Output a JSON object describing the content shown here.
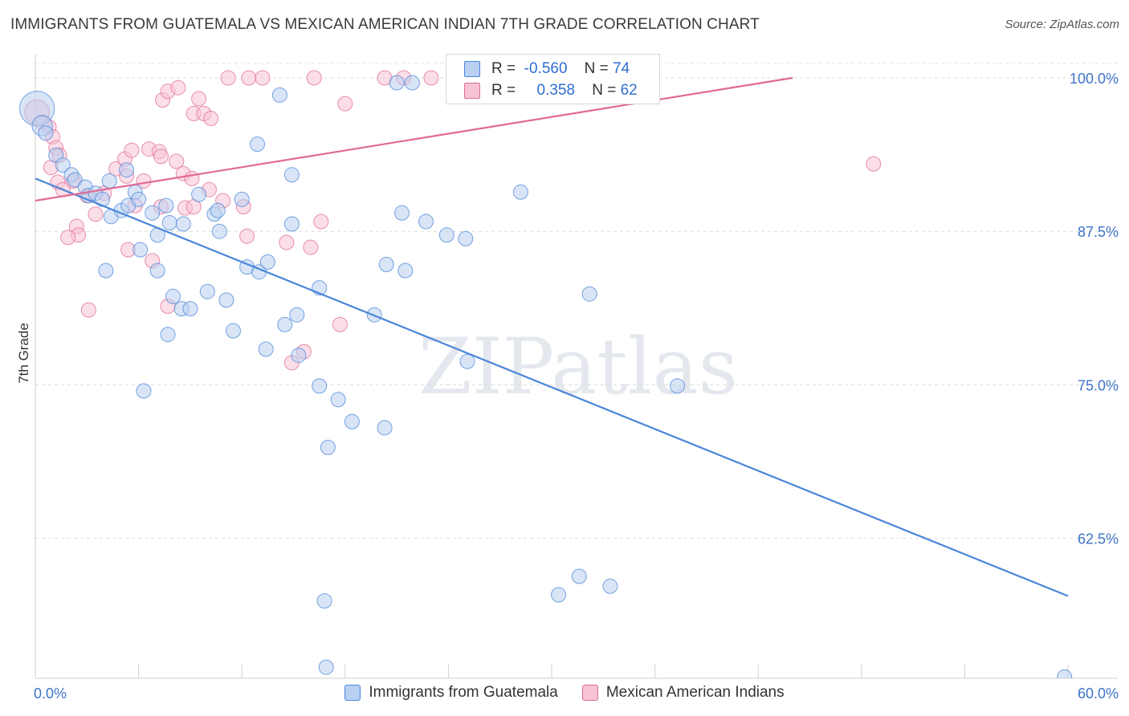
{
  "title": "IMMIGRANTS FROM GUATEMALA VS MEXICAN AMERICAN INDIAN 7TH GRADE CORRELATION CHART",
  "source": "Source: ZipAtlas.com",
  "watermark": "ZIPatlas",
  "colors": {
    "blue": "#4a86d8",
    "blue_fill": "#b9d0f1",
    "pink": "#e06b94",
    "pink_fill": "#f7c3d5",
    "axis_text": "#3f74c9"
  },
  "legend_box": {
    "rows": [
      {
        "r_label": "R =",
        "r_value": "-0.560",
        "n_label": "N =",
        "n_value": "74"
      },
      {
        "r_label": "R =",
        "r_value": "0.358",
        "n_label": "N =",
        "n_value": "62"
      }
    ]
  },
  "chart_data": {
    "type": "scatter",
    "title": "IMMIGRANTS FROM GUATEMALA VS MEXICAN AMERICAN INDIAN 7TH GRADE CORRELATION CHART",
    "xlabel": "",
    "ylabel": "7th Grade",
    "xlim": [
      0,
      60
    ],
    "ylim": [
      50.5,
      101.5
    ],
    "x_tick_labels": [
      "0.0%",
      "60.0%"
    ],
    "y_ticks": [
      100.0,
      87.5,
      75.0,
      62.5
    ],
    "y_tick_labels": [
      "100.0%",
      "87.5%",
      "75.0%",
      "62.5%"
    ],
    "grid": true,
    "legend_position": "bottom",
    "series": [
      {
        "name": "Immigrants from Guatemala",
        "color": "#4a86d8",
        "r": -0.56,
        "n": 74,
        "trend": [
          [
            0.0,
            91.8
          ],
          [
            60.0,
            57.8
          ]
        ],
        "points": [
          [
            0.1,
            97.5,
            2.4
          ],
          [
            0.4,
            96.1,
            1.4
          ],
          [
            0.6,
            95.5,
            1
          ],
          [
            1.2,
            93.7,
            1
          ],
          [
            1.6,
            92.9,
            1
          ],
          [
            2.1,
            92.1,
            1
          ],
          [
            2.3,
            91.7,
            1
          ],
          [
            2.9,
            91.1,
            1
          ],
          [
            3.1,
            90.4,
            1
          ],
          [
            3.5,
            90.6,
            1
          ],
          [
            3.9,
            90.1,
            1
          ],
          [
            4.3,
            91.6,
            1
          ],
          [
            5.3,
            92.5,
            1
          ],
          [
            4.4,
            88.7,
            1
          ],
          [
            5.0,
            89.2,
            1
          ],
          [
            5.4,
            89.6,
            1
          ],
          [
            5.8,
            90.7,
            1
          ],
          [
            6.0,
            90.1,
            1
          ],
          [
            6.8,
            89.0,
            1
          ],
          [
            7.1,
            87.2,
            1
          ],
          [
            7.6,
            89.6,
            1
          ],
          [
            7.8,
            88.2,
            1
          ],
          [
            8.6,
            88.1,
            1
          ],
          [
            9.5,
            90.5,
            1
          ],
          [
            10.4,
            88.9,
            1
          ],
          [
            10.6,
            89.2,
            1
          ],
          [
            10.7,
            87.5,
            1
          ],
          [
            6.1,
            86.0,
            1
          ],
          [
            4.1,
            84.3,
            1
          ],
          [
            7.1,
            84.3,
            1
          ],
          [
            8.0,
            82.2,
            1
          ],
          [
            8.5,
            81.2,
            1
          ],
          [
            9.0,
            81.2,
            1
          ],
          [
            10.0,
            82.6,
            1
          ],
          [
            11.1,
            81.9,
            1
          ],
          [
            12.3,
            84.6,
            1
          ],
          [
            13.0,
            84.2,
            1
          ],
          [
            13.5,
            85.0,
            1
          ],
          [
            11.5,
            79.4,
            1
          ],
          [
            7.7,
            79.1,
            1
          ],
          [
            14.5,
            79.9,
            1
          ],
          [
            12.9,
            94.6,
            1
          ],
          [
            12.0,
            90.1,
            1
          ],
          [
            14.2,
            98.6,
            1
          ],
          [
            14.9,
            92.1,
            1
          ],
          [
            14.9,
            88.1,
            1
          ],
          [
            16.5,
            82.9,
            1
          ],
          [
            15.2,
            80.7,
            1
          ],
          [
            13.4,
            77.9,
            1
          ],
          [
            15.3,
            77.4,
            1
          ],
          [
            19.7,
            80.7,
            1
          ],
          [
            20.4,
            84.8,
            1
          ],
          [
            21.5,
            84.3,
            1
          ],
          [
            21.3,
            89.0,
            1
          ],
          [
            22.7,
            88.3,
            1
          ],
          [
            23.9,
            87.2,
            1
          ],
          [
            25.0,
            86.9,
            1
          ],
          [
            25.1,
            76.9,
            1
          ],
          [
            16.5,
            74.9,
            1
          ],
          [
            17.6,
            73.8,
            1
          ],
          [
            18.4,
            72.0,
            1
          ],
          [
            20.3,
            71.5,
            1
          ],
          [
            17.0,
            69.9,
            1
          ],
          [
            6.3,
            74.5,
            1
          ],
          [
            21.0,
            99.6,
            1
          ],
          [
            21.9,
            99.6,
            1
          ],
          [
            28.2,
            90.7,
            1
          ],
          [
            32.2,
            82.4,
            1
          ],
          [
            37.3,
            74.9,
            1
          ],
          [
            33.4,
            58.6,
            1
          ],
          [
            30.4,
            57.9,
            1
          ],
          [
            31.6,
            59.4,
            1
          ],
          [
            16.8,
            57.4,
            1
          ],
          [
            16.9,
            52.0,
            1
          ],
          [
            59.8,
            51.2,
            1
          ],
          [
            35.8,
            99.6,
            1
          ]
        ]
      },
      {
        "name": "Mexican American Indians",
        "color": "#e06b94",
        "r": 0.358,
        "n": 62,
        "trend": [
          [
            0.0,
            90.0
          ],
          [
            44.0,
            100.0
          ]
        ],
        "points": [
          [
            0.1,
            97.2,
            1.7
          ],
          [
            0.4,
            96.4,
            1
          ],
          [
            0.8,
            96.0,
            1
          ],
          [
            1.0,
            95.2,
            1
          ],
          [
            1.2,
            94.3,
            1
          ],
          [
            1.4,
            93.7,
            1
          ],
          [
            0.9,
            92.7,
            1
          ],
          [
            1.3,
            91.5,
            1
          ],
          [
            1.6,
            90.9,
            1
          ],
          [
            2.2,
            91.6,
            1
          ],
          [
            3.0,
            90.4,
            1
          ],
          [
            4.0,
            90.6,
            1
          ],
          [
            3.5,
            88.9,
            1
          ],
          [
            2.4,
            87.9,
            1
          ],
          [
            2.5,
            87.2,
            1
          ],
          [
            1.9,
            87.0,
            1
          ],
          [
            4.7,
            92.6,
            1
          ],
          [
            5.2,
            93.4,
            1
          ],
          [
            5.6,
            94.1,
            1
          ],
          [
            5.3,
            92.0,
            1
          ],
          [
            6.3,
            91.6,
            1
          ],
          [
            5.8,
            89.6,
            1
          ],
          [
            6.6,
            94.2,
            1
          ],
          [
            7.2,
            94.0,
            1
          ],
          [
            7.3,
            93.6,
            1
          ],
          [
            8.2,
            93.2,
            1
          ],
          [
            8.6,
            92.2,
            1
          ],
          [
            9.1,
            91.8,
            1
          ],
          [
            8.7,
            89.4,
            1
          ],
          [
            7.3,
            89.5,
            1
          ],
          [
            10.1,
            90.9,
            1
          ],
          [
            10.9,
            90.0,
            1
          ],
          [
            9.2,
            89.5,
            1
          ],
          [
            6.8,
            85.1,
            1
          ],
          [
            5.4,
            86.0,
            1
          ],
          [
            7.7,
            81.4,
            1
          ],
          [
            3.1,
            81.1,
            1
          ],
          [
            7.4,
            98.2,
            1
          ],
          [
            7.7,
            98.9,
            1
          ],
          [
            8.3,
            99.2,
            1
          ],
          [
            9.5,
            98.3,
            1
          ],
          [
            9.2,
            97.1,
            1
          ],
          [
            9.8,
            97.1,
            1
          ],
          [
            10.2,
            96.7,
            1
          ],
          [
            11.2,
            100.0,
            1
          ],
          [
            12.4,
            100.0,
            1
          ],
          [
            13.2,
            100.0,
            1
          ],
          [
            16.2,
            100.0,
            1
          ],
          [
            18.0,
            97.9,
            1
          ],
          [
            20.3,
            100.0,
            1
          ],
          [
            21.4,
            100.0,
            1
          ],
          [
            23.0,
            100.0,
            1
          ],
          [
            27.7,
            100.0,
            1
          ],
          [
            30.1,
            100.0,
            1
          ],
          [
            12.1,
            89.5,
            1
          ],
          [
            12.3,
            87.1,
            1
          ],
          [
            14.6,
            86.6,
            1
          ],
          [
            16.0,
            86.2,
            1
          ],
          [
            16.6,
            88.3,
            1
          ],
          [
            15.6,
            77.7,
            1
          ],
          [
            14.9,
            76.8,
            1
          ],
          [
            17.7,
            79.9,
            1
          ],
          [
            48.7,
            93.0,
            1
          ]
        ]
      }
    ]
  }
}
